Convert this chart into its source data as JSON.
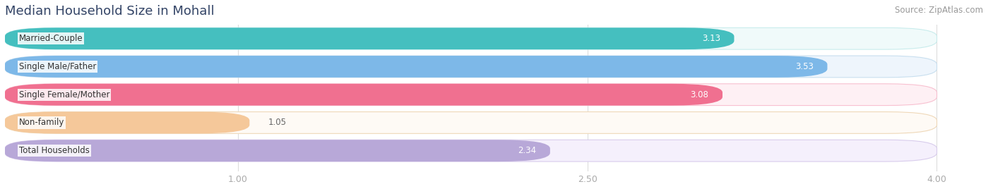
{
  "title": "Median Household Size in Mohall",
  "source": "Source: ZipAtlas.com",
  "categories": [
    "Married-Couple",
    "Single Male/Father",
    "Single Female/Mother",
    "Non-family",
    "Total Households"
  ],
  "values": [
    3.13,
    3.53,
    3.08,
    1.05,
    2.34
  ],
  "bar_colors": [
    "#45BFBF",
    "#7DB8E8",
    "#F07090",
    "#F5C89A",
    "#B8A8D8"
  ],
  "bar_bg_colors": [
    "#F0FAFA",
    "#EEF5FC",
    "#FEF0F4",
    "#FEFAF5",
    "#F5F0FC"
  ],
  "bar_border_colors": [
    "#C8ECEC",
    "#C8DFEF",
    "#F8C0D0",
    "#EFD8B8",
    "#D8CCEC"
  ],
  "value_in_bar": [
    true,
    true,
    true,
    false,
    true
  ],
  "xlim": [
    0,
    4.22
  ],
  "xmin": 0,
  "xticks": [
    1.0,
    2.5,
    4.0
  ],
  "figsize": [
    14.06,
    2.68
  ],
  "dpi": 100,
  "title_fontsize": 13,
  "title_color": "#334466",
  "label_fontsize": 8.5,
  "value_fontsize": 8.5,
  "tick_fontsize": 9,
  "source_fontsize": 8.5,
  "bg_color": "#FFFFFF",
  "grid_color": "#DDDDDD",
  "tick_color": "#AAAAAA"
}
